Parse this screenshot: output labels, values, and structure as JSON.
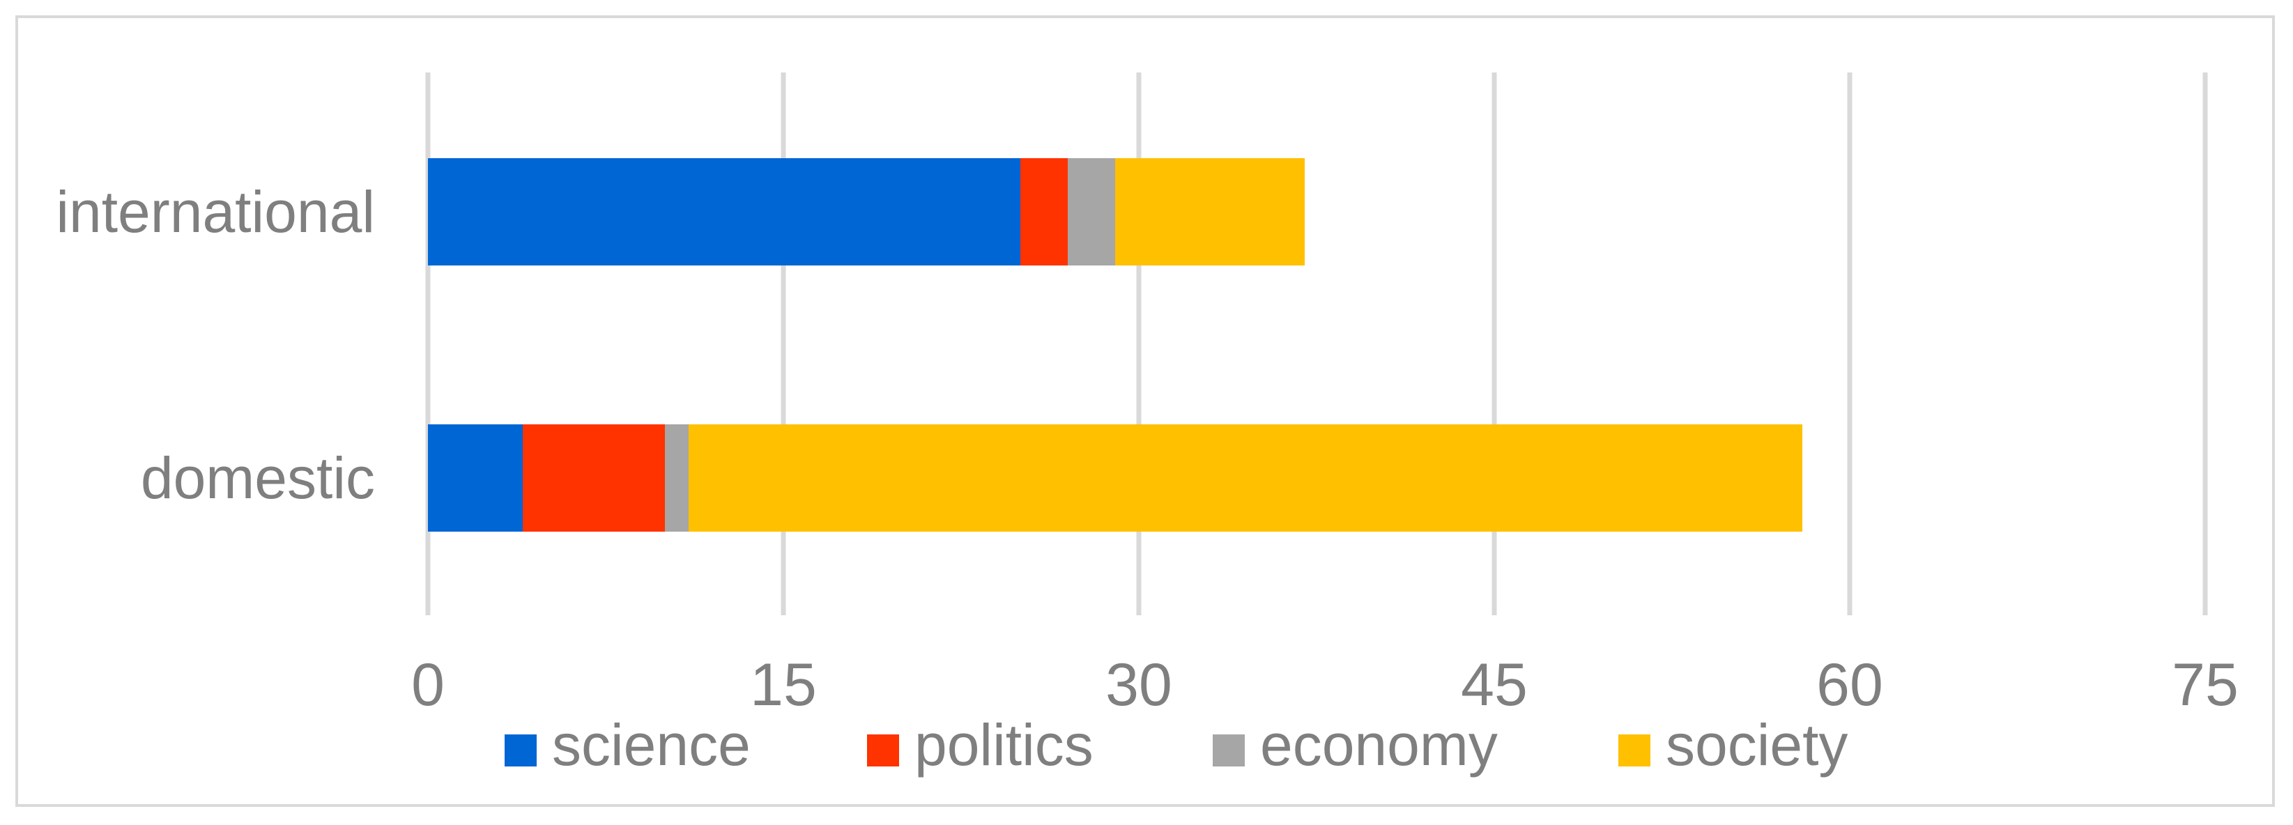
{
  "chart_data": {
    "type": "bar",
    "orientation": "horizontal",
    "stacked": true,
    "categories": [
      "international",
      "domestic"
    ],
    "series": [
      {
        "name": "science",
        "color": "#0066d4",
        "values": [
          25,
          4
        ]
      },
      {
        "name": "politics",
        "color": "#ff3300",
        "values": [
          2,
          6
        ]
      },
      {
        "name": "economy",
        "color": "#a6a6a6",
        "values": [
          2,
          1
        ]
      },
      {
        "name": "society",
        "color": "#ffc000",
        "values": [
          8,
          47
        ]
      }
    ],
    "xlim": [
      0,
      75
    ],
    "xticks": [
      "0",
      "15",
      "30",
      "45",
      "60",
      "75"
    ],
    "title": "",
    "xlabel": "",
    "ylabel": "",
    "grid": "vertical",
    "legend_position": "bottom",
    "colors": {
      "text": "#7f7f7f",
      "grid": "#d9d9d9",
      "frame": "#d9d9d9"
    }
  }
}
